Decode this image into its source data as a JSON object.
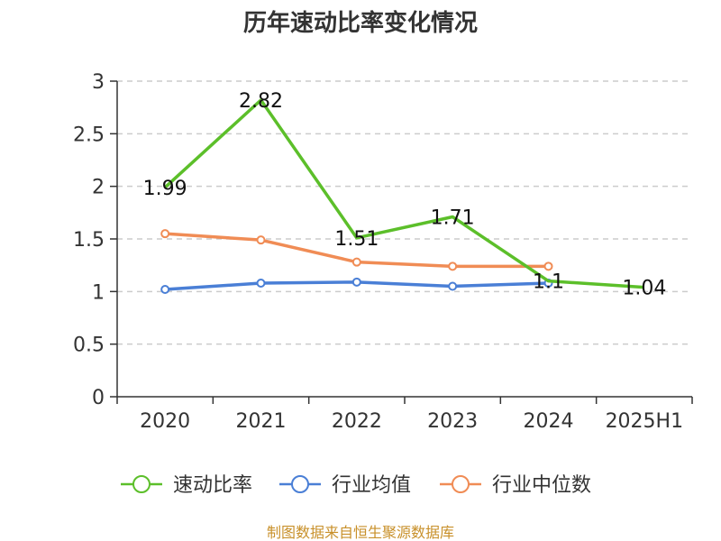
{
  "chart_data": {
    "type": "line",
    "title": "历年速动比率变化情况",
    "categories": [
      "2020",
      "2021",
      "2022",
      "2023",
      "2024",
      "2025H1"
    ],
    "ylim": [
      0,
      3
    ],
    "yticks": [
      "0",
      "0.5",
      "1",
      "1.5",
      "2",
      "2.5",
      "3"
    ],
    "grid": true,
    "legend_position": "bottom",
    "series": [
      {
        "name": "速动比率",
        "color": "#5cbf2a",
        "values": [
          1.99,
          2.82,
          1.51,
          1.71,
          1.1,
          1.04
        ],
        "labels": [
          "1.99",
          "2.82",
          "1.51",
          "1.71",
          "1.1",
          "1.04"
        ],
        "show_markers": false
      },
      {
        "name": "行业均值",
        "color": "#4a7fd6",
        "values": [
          1.02,
          1.08,
          1.09,
          1.05,
          1.08,
          null
        ],
        "show_markers": true
      },
      {
        "name": "行业中位数",
        "color": "#f08c55",
        "values": [
          1.55,
          1.49,
          1.28,
          1.24,
          1.24,
          null
        ],
        "show_markers": true
      }
    ],
    "source": "制图数据来自恒生聚源数据库"
  }
}
